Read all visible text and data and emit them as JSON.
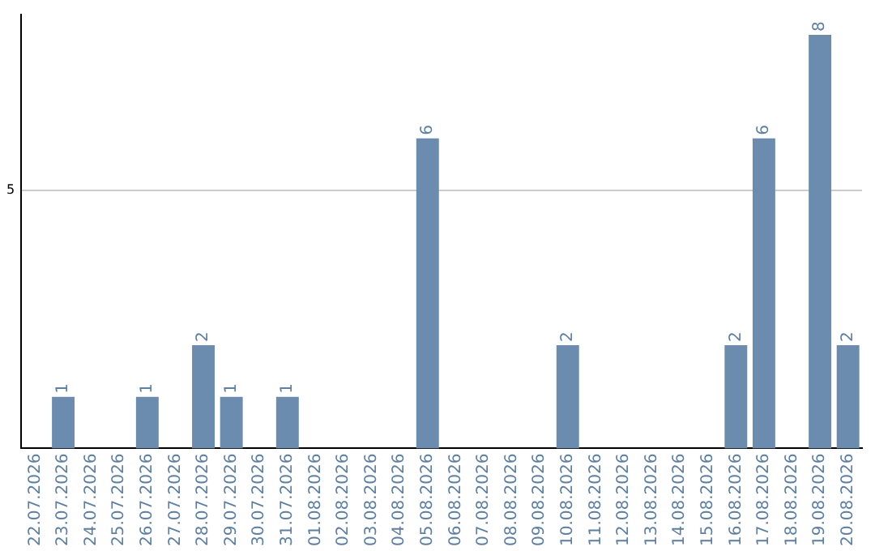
{
  "chart_data": {
    "type": "bar",
    "categories": [
      "22.07.2026",
      "23.07.2026",
      "24.07.2026",
      "25.07.2026",
      "26.07.2026",
      "27.07.2026",
      "28.07.2026",
      "29.07.2026",
      "30.07.2026",
      "31.07.2026",
      "01.08.2026",
      "02.08.2026",
      "03.08.2026",
      "04.08.2026",
      "05.08.2026",
      "06.08.2026",
      "07.08.2026",
      "08.08.2026",
      "09.08.2026",
      "10.08.2026",
      "11.08.2026",
      "12.08.2026",
      "13.08.2026",
      "14.08.2026",
      "15.08.2026",
      "16.08.2026",
      "17.08.2026",
      "18.08.2026",
      "19.08.2026",
      "20.08.2026"
    ],
    "values": [
      0,
      1,
      0,
      0,
      1,
      0,
      2,
      1,
      0,
      1,
      0,
      0,
      0,
      0,
      6,
      0,
      0,
      0,
      0,
      2,
      0,
      0,
      0,
      0,
      0,
      2,
      6,
      0,
      8,
      2
    ],
    "value_labels": [
      null,
      "1",
      null,
      null,
      "1",
      null,
      "2",
      "1",
      null,
      "1",
      null,
      null,
      null,
      null,
      "6",
      null,
      null,
      null,
      null,
      "2",
      null,
      null,
      null,
      null,
      null,
      "2",
      "6",
      null,
      "8",
      "2"
    ],
    "color": "#6b8caf",
    "ylim": [
      0,
      8.4
    ],
    "yticks": [
      5
    ],
    "grid": "y"
  }
}
